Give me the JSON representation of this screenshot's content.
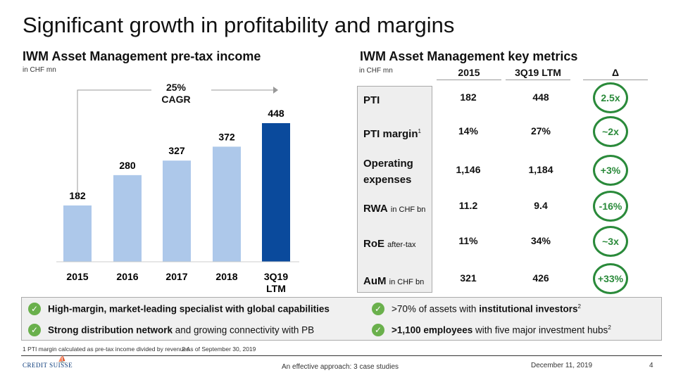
{
  "title": "Significant growth in profitability and margins",
  "left": {
    "heading": "IWM Asset Management pre-tax income",
    "unit": "in CHF mn",
    "cagr_pct": "25%",
    "cagr_label": "CAGR"
  },
  "chart_data": {
    "type": "bar",
    "title": "IWM Asset Management pre-tax income",
    "ylabel": "in CHF mn",
    "categories": [
      "2015",
      "2016",
      "2017",
      "2018",
      "3Q19 LTM"
    ],
    "values": [
      182,
      280,
      327,
      372,
      448
    ],
    "ylim": [
      0,
      460
    ],
    "colors": [
      "#adc8ea",
      "#adc8ea",
      "#adc8ea",
      "#adc8ea",
      "#0a4a9c"
    ],
    "annotation": "25% CAGR"
  },
  "right": {
    "heading": "IWM Asset Management key metrics",
    "unit": "in CHF mn",
    "columns": [
      "2015",
      "3Q19 LTM",
      "Δ"
    ],
    "rows": [
      {
        "label": "PTI",
        "sub": "",
        "sup": "",
        "v2015": "182",
        "vltm": "448",
        "delta": "2.5x"
      },
      {
        "label": "PTI margin",
        "sub": "",
        "sup": "1",
        "v2015": "14%",
        "vltm": "27%",
        "delta": "~2x"
      },
      {
        "label": "Operating expenses",
        "sub": "",
        "sup": "",
        "v2015": "1,146",
        "vltm": "1,184",
        "delta": "+3%"
      },
      {
        "label": "RWA",
        "sub": "in CHF bn",
        "sup": "",
        "v2015": "11.2",
        "vltm": "9.4",
        "delta": "-16%"
      },
      {
        "label": "RoE",
        "sub": "after-tax",
        "sup": "",
        "v2015": "11%",
        "vltm": "34%",
        "delta": "~3x"
      },
      {
        "label": "AuM",
        "sub": "in CHF bn",
        "sup": "",
        "v2015": "321",
        "vltm": "426",
        "delta": "+33%"
      }
    ]
  },
  "highlights": [
    {
      "bold": "High-margin, market-leading specialist with global capabilities",
      "rest": "",
      "pre": "",
      "sup": ""
    },
    {
      "pre": ">70% of assets with ",
      "bold": "institutional investors",
      "rest": "",
      "sup": "2"
    },
    {
      "bold": "Strong distribution network",
      "rest": " and growing connectivity with PB",
      "pre": "",
      "sup": ""
    },
    {
      "pre": "",
      "bold": ">1,100 employees",
      "rest": " with five major investment hubs",
      "sup": "2"
    }
  ],
  "footnote1": "1 PTI margin calculated as pre-tax income divided by revenues",
  "footnote2": "2 As of September 30, 2019",
  "footer": {
    "logo": "CREDIT SUISSE",
    "center": "An effective approach: 3 case studies",
    "date": "December 11, 2019",
    "page": "4"
  },
  "colors": {
    "accent_green": "#2a8a3a",
    "bar_light": "#adc8ea",
    "bar_dark": "#0a4a9c"
  }
}
